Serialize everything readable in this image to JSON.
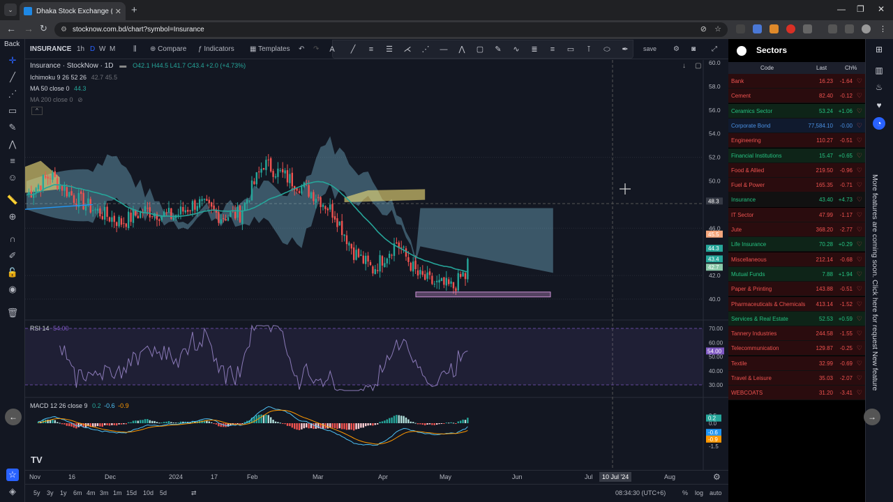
{
  "browser": {
    "tab_title": "Dhaka Stock Exchange (DSE) Ar",
    "url": "stocknow.com.bd/chart?symbol=Insurance"
  },
  "left_panel": {
    "back_label": "Back"
  },
  "toolbar": {
    "symbol": "INSURANCE",
    "intervals": [
      "1h",
      "D",
      "W",
      "M"
    ],
    "compare": "Compare",
    "indicators": "Indicators",
    "templates": "Templates",
    "save": "save"
  },
  "chart": {
    "title": "Insurance · StockNow · 1D",
    "ohlc": "O42.1 H44.5 L41.7 C43.4 +2.0 (+4.73%)",
    "ichimoku_label": "Ichimoku 9 26 52 26",
    "ichimoku_vals": "42.7 45.5",
    "ma50_label": "MA 50 close 0",
    "ma50_val": "44.3",
    "ma200_label": "MA 200 close 0",
    "rsi_label": "RSI 14",
    "rsi_val": "54.00",
    "macd_label": "MACD 12 26 close 9",
    "macd_v1": "0.2",
    "macd_v2": "-0.6",
    "macd_v3": "-0.9",
    "price_ticks": [
      "60.0",
      "58.0",
      "56.0",
      "54.0",
      "52.0",
      "50.0",
      "46.0",
      "42.0",
      "40.0"
    ],
    "price_badges": {
      "crosshair": "48.3",
      "ichi": "45.5",
      "ma50": "44.3",
      "last": "43.4",
      "ichi2": "42.7"
    },
    "rsi_ticks": [
      "70.00",
      "60.00",
      "50.00",
      "40.00",
      "30.00"
    ],
    "rsi_badge": "54.00",
    "macd_ticks": [
      "0.5",
      "0.0",
      "-1.5"
    ],
    "macd_badges": [
      "0.2",
      "-0.6",
      "-0.9"
    ],
    "time_ticks": [
      "Nov",
      "16",
      "Dec",
      "2024",
      "17",
      "Feb",
      "Mar",
      "Apr",
      "May",
      "Jun",
      "Jul",
      "Aug"
    ],
    "crosshair_date": "10 Jul '24",
    "colors": {
      "up": "#26a69a",
      "down": "#ef5350",
      "ma50": "#26a69a",
      "cloud_bull": "#87ceeb",
      "cloud_bear": "#f5e17a"
    }
  },
  "bottom": {
    "ranges": [
      "5y",
      "3y",
      "1y",
      "6m",
      "4m",
      "3m",
      "1m",
      "15d",
      "10d",
      "5d"
    ],
    "time": "08:34:30 (UTC+6)",
    "pct": "%",
    "log": "log",
    "auto": "auto"
  },
  "sectors": {
    "title": "Sectors",
    "headers": {
      "code": "Code",
      "last": "Last",
      "chg": "Ch%"
    },
    "rows": [
      {
        "name": "Bank",
        "last": "16.23",
        "chg": "-1.64",
        "dir": "down"
      },
      {
        "name": "Cement",
        "last": "82.40",
        "chg": "-0.12",
        "dir": "down"
      },
      {
        "name": "Ceramics Sector",
        "last": "53.24",
        "chg": "+1.06",
        "dir": "up"
      },
      {
        "name": "Corporate Bond",
        "last": "77,584.10",
        "chg": "-0.00",
        "dir": "flat"
      },
      {
        "name": "Engineering",
        "last": "110.27",
        "chg": "-0.51",
        "dir": "down"
      },
      {
        "name": "Financial Institutions",
        "last": "15.47",
        "chg": "+0.65",
        "dir": "up"
      },
      {
        "name": "Food & Allied",
        "last": "219.50",
        "chg": "-0.96",
        "dir": "down"
      },
      {
        "name": "Fuel & Power",
        "last": "165.35",
        "chg": "-0.71",
        "dir": "down"
      },
      {
        "name": "Insurance",
        "last": "43.40",
        "chg": "+4.73",
        "dir": "up"
      },
      {
        "name": "IT Sector",
        "last": "47.99",
        "chg": "-1.17",
        "dir": "down"
      },
      {
        "name": "Jute",
        "last": "368.20",
        "chg": "-2.77",
        "dir": "down"
      },
      {
        "name": "Life Insurance",
        "last": "70.28",
        "chg": "+0.29",
        "dir": "up"
      },
      {
        "name": "Miscellaneous",
        "last": "212.14",
        "chg": "-0.68",
        "dir": "down"
      },
      {
        "name": "Mutual Funds",
        "last": "7.88",
        "chg": "+1.94",
        "dir": "up"
      },
      {
        "name": "Paper & Printing",
        "last": "143.88",
        "chg": "-0.51",
        "dir": "down"
      },
      {
        "name": "Pharmaceuticals & Chemicals",
        "last": "413.14",
        "chg": "-1.52",
        "dir": "down"
      },
      {
        "name": "Services & Real Estate",
        "last": "52.53",
        "chg": "+0.59",
        "dir": "up"
      },
      {
        "name": "Tannery Industries",
        "last": "244.58",
        "chg": "-1.55",
        "dir": "down"
      },
      {
        "name": "Telecommunication",
        "last": "129.87",
        "chg": "-0.25",
        "dir": "down"
      },
      {
        "name": "Textile",
        "last": "32.99",
        "chg": "-0.69",
        "dir": "down"
      },
      {
        "name": "Travel & Leisure",
        "last": "35.03",
        "chg": "-2.07",
        "dir": "down"
      },
      {
        "name": "WEBCOATS",
        "last": "31.20",
        "chg": "-3.41",
        "dir": "down"
      }
    ]
  },
  "side_note": "More features are coming soon. Click here for request New feature"
}
